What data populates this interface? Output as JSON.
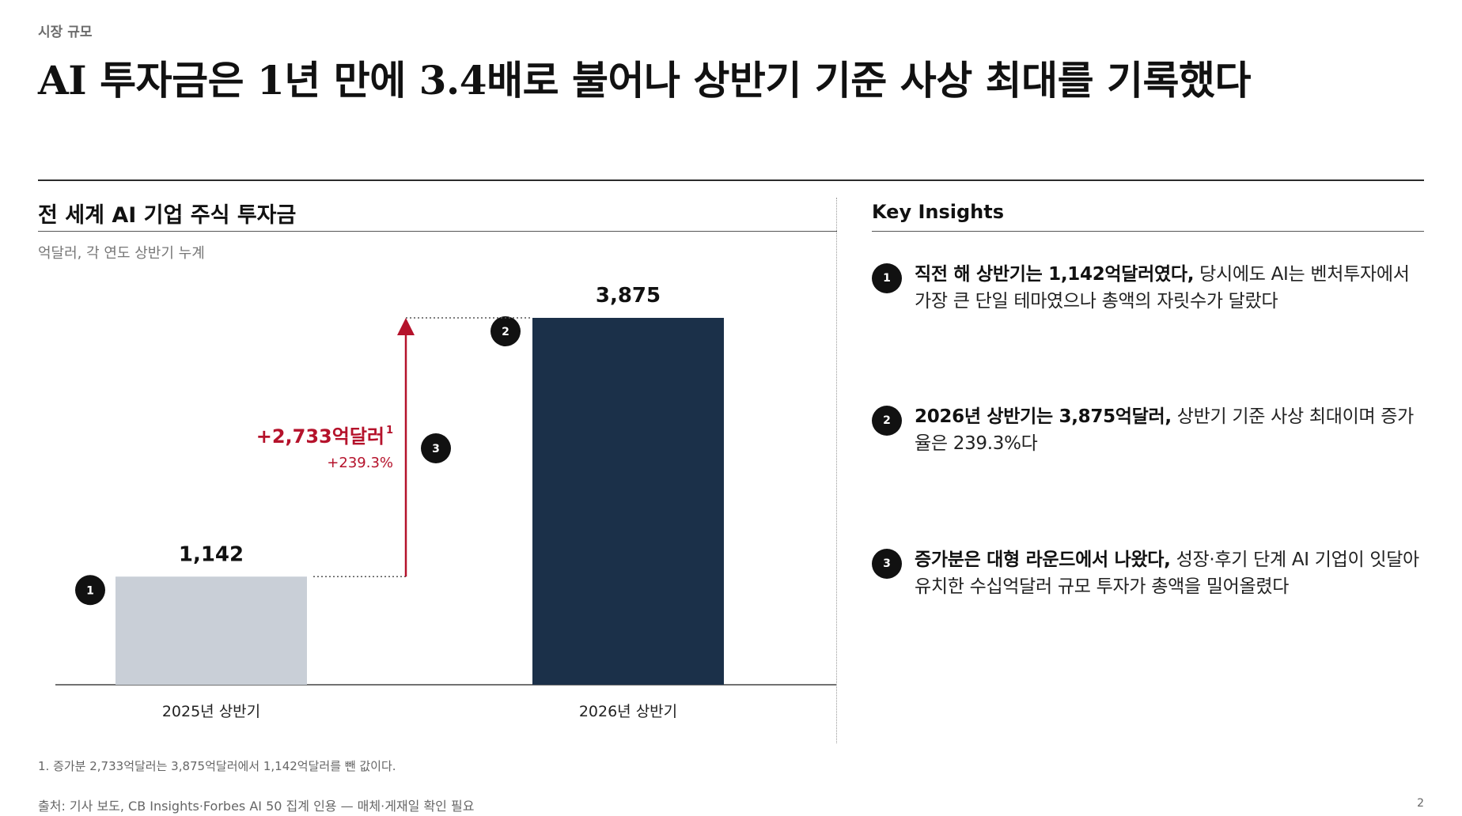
{
  "header": {
    "kicker": "시장 규모",
    "headline": "AI 투자금은 1년 만에 3.4배로 불어나 상반기 기준 사상 최대를 기록했다"
  },
  "chart_data": {
    "type": "bar",
    "title": "전 세계 AI 기업 주식 투자금",
    "subtitle": "억달러, 각 연도 상반기 누계",
    "categories": [
      "2025년 상반기",
      "2026년 상반기"
    ],
    "values": [
      1142,
      3875
    ],
    "value_labels": [
      "1,142",
      "3,875"
    ],
    "bar_colors": [
      "#c9cfd7",
      "#1b3049"
    ],
    "ylim": [
      0,
      3875
    ],
    "bar_badges": [
      "1",
      "2"
    ],
    "change": {
      "label": "+2,733억달러",
      "superscript": "1",
      "percent": "+239.3%",
      "badge": "3",
      "color": "#b5122b"
    },
    "grid": false,
    "legend": "none"
  },
  "insights": {
    "title": "Key Insights",
    "items": [
      {
        "badge": "1",
        "bold": "직전 해 상반기는 1,142억달러였다,",
        "text": " 당시에도 AI는 벤처투자에서 가장 큰 단일 테마였으나 총액의 자릿수가 달랐다"
      },
      {
        "badge": "2",
        "bold": "2026년 상반기는 3,875억달러,",
        "text": " 상반기 기준 사상 최대이며 증가율은 239.3%다"
      },
      {
        "badge": "3",
        "bold": "증가분은 대형 라운드에서 나왔다,",
        "text": " 성장·후기 단계 AI 기업이 잇달아 유치한 수십억달러 규모 투자가 총액을 밀어올렸다"
      }
    ]
  },
  "footer": {
    "footnote": "1. 증가분 2,733억달러는 3,875억달러에서 1,142억달러를 뺀 값이다.",
    "source": "출처: 기사 보도, CB Insights·Forbes AI 50 집계 인용 — 매체·게재일 확인 필요",
    "page_number": "2"
  },
  "colors": {
    "accent": "#b5122b",
    "navy": "#1b3049",
    "grey_bar": "#c9cfd7"
  }
}
